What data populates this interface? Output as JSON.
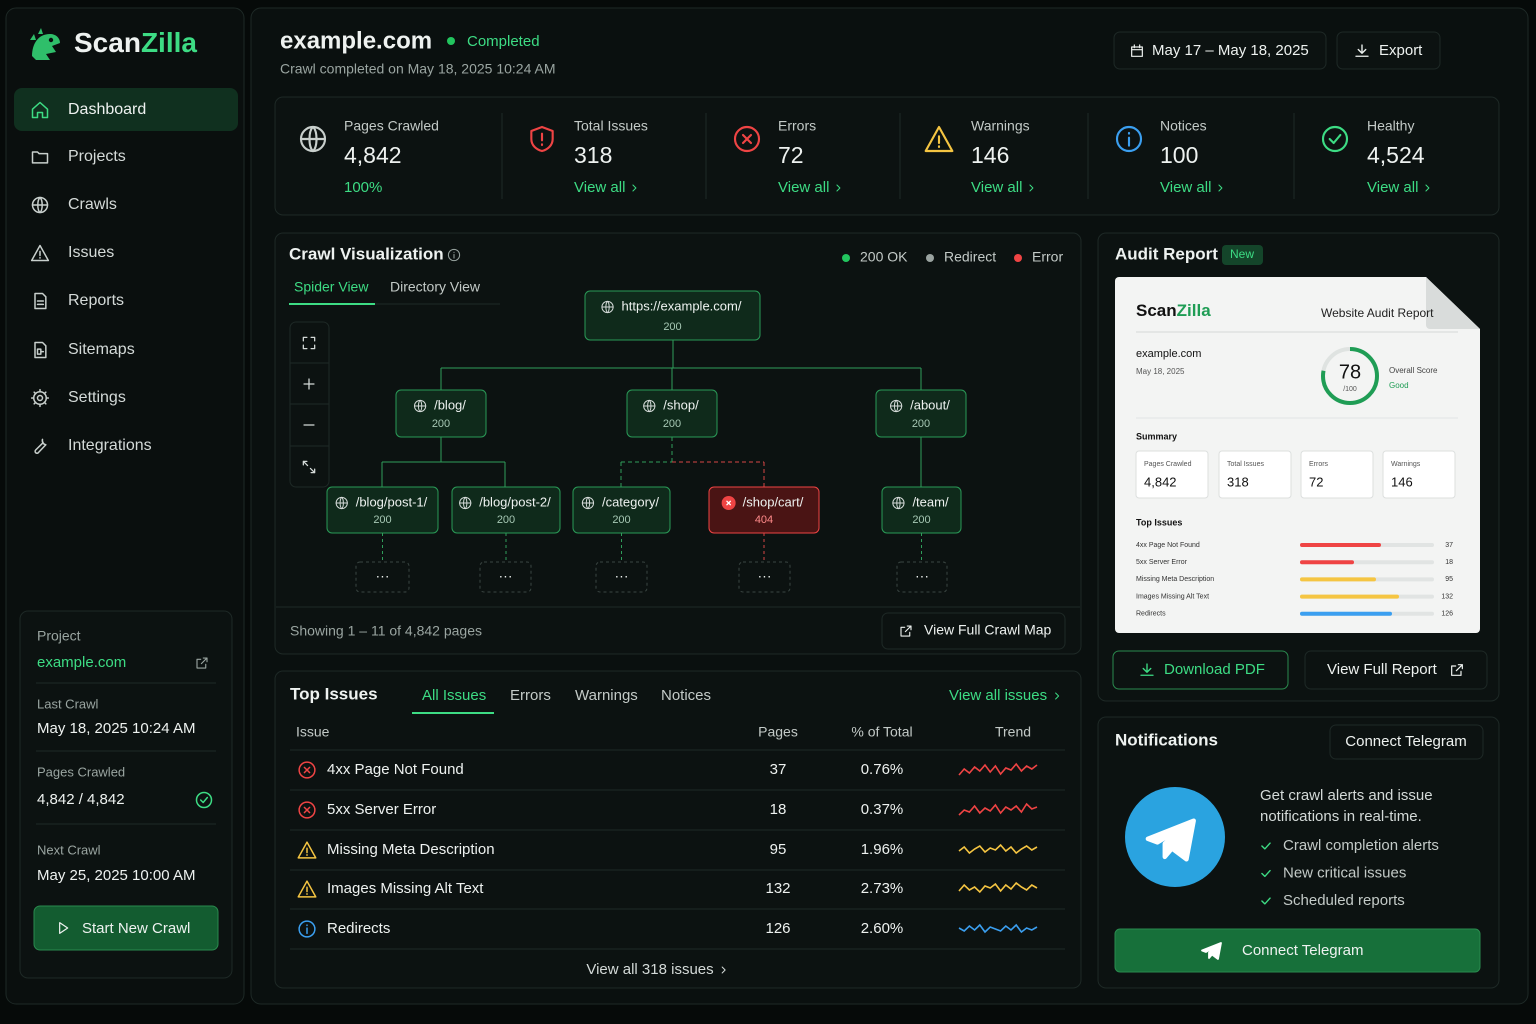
{
  "sidebar": {
    "brand": {
      "part1": "Scan",
      "part2": "Zilla"
    },
    "nav": [
      "Dashboard",
      "Projects",
      "Crawls",
      "Issues",
      "Reports",
      "Sitemaps",
      "Settings",
      "Integrations"
    ],
    "project": {
      "label": "Project",
      "name": "example.com",
      "last_crawl_label": "Last Crawl",
      "last_crawl": "May 18, 2025 10:24 AM",
      "pages_label": "Pages Crawled",
      "pages": "4,842 / 4,842",
      "next_crawl_label": "Next Crawl",
      "next_crawl": "May 25, 2025 10:00 AM",
      "button": "Start New Crawl"
    }
  },
  "header": {
    "site": "example.com",
    "status": "Completed",
    "subtitle": "Crawl completed on May 18, 2025 10:24 AM",
    "date_range": "May 17 – May 18, 2025",
    "export": "Export"
  },
  "stats": [
    {
      "label": "Pages Crawled",
      "value": "4,842",
      "link": "100%"
    },
    {
      "label": "Total Issues",
      "value": "318",
      "link": "View all"
    },
    {
      "label": "Errors",
      "value": "72",
      "link": "View all"
    },
    {
      "label": "Warnings",
      "value": "146",
      "link": "View all"
    },
    {
      "label": "Notices",
      "value": "100",
      "link": "View all"
    },
    {
      "label": "Healthy",
      "value": "4,524",
      "link": "View all"
    }
  ],
  "crawl": {
    "title": "Crawl Visualization",
    "legend": [
      "200 OK",
      "Redirect",
      "Error"
    ],
    "tabs": [
      "Spider View",
      "Directory View"
    ],
    "nodes": [
      {
        "label": "https://example.com/",
        "status": 200
      },
      {
        "label": "/blog/",
        "status": 200
      },
      {
        "label": "/shop/",
        "status": 200
      },
      {
        "label": "/about/",
        "status": 200
      },
      {
        "label": "/blog/post-1/",
        "status": 200
      },
      {
        "label": "/blog/post-2/",
        "status": 200
      },
      {
        "label": "/category/",
        "status": 200
      },
      {
        "label": "/shop/cart/",
        "status": 404
      },
      {
        "label": "/team/",
        "status": 200
      }
    ],
    "more": "···",
    "footer": "Showing 1 – 11 of 4,842 pages",
    "button": "View Full Crawl Map"
  },
  "issues": {
    "title": "Top Issues",
    "tabs": [
      "All Issues",
      "Errors",
      "Warnings",
      "Notices"
    ],
    "view_all": "View all issues",
    "columns": [
      "Issue",
      "Pages",
      "% of Total",
      "Trend"
    ],
    "rows": [
      {
        "issue": "4xx Page Not Found",
        "pages": 37,
        "percent": "0.76%",
        "severity": "error"
      },
      {
        "issue": "5xx Server Error",
        "pages": 18,
        "percent": "0.37%",
        "severity": "error"
      },
      {
        "issue": "Missing Meta Description",
        "pages": 95,
        "percent": "1.96%",
        "severity": "warning"
      },
      {
        "issue": "Images Missing Alt Text",
        "pages": 132,
        "percent": "2.73%",
        "severity": "warning"
      },
      {
        "issue": "Redirects",
        "pages": 126,
        "percent": "2.60%",
        "severity": "notice"
      }
    ],
    "footer": "View all 318 issues"
  },
  "audit": {
    "title": "Audit Report",
    "badge": "New",
    "doc": {
      "brand": {
        "part1": "Scan",
        "part2": "Zilla"
      },
      "title": "Website Audit Report",
      "site": "example.com",
      "date": "May 18, 2025",
      "score": 78,
      "score_max": {
        "value": 100,
        "label": "/100"
      },
      "score_label": "Overall Score",
      "score_grade": "Good",
      "summary_title": "Summary",
      "summary": [
        {
          "label": "Pages Crawled",
          "value": "4,842"
        },
        {
          "label": "Total Issues",
          "value": "318"
        },
        {
          "label": "Errors",
          "value": "72"
        },
        {
          "label": "Warnings",
          "value": "146"
        }
      ],
      "top_issues_title": "Top Issues",
      "top_issues": [
        {
          "label": "4xx Page Not Found",
          "value": 37,
          "severity": "error"
        },
        {
          "label": "5xx Server Error",
          "value": 18,
          "severity": "error"
        },
        {
          "label": "Missing Meta Description",
          "value": 95,
          "severity": "warning"
        },
        {
          "label": "Images Missing Alt Text",
          "value": 132,
          "severity": "warning"
        },
        {
          "label": "Redirects",
          "value": 126,
          "severity": "notice"
        }
      ]
    },
    "download": "Download PDF",
    "view": "View Full Report"
  },
  "notifications": {
    "title": "Notifications",
    "connect_top": "Connect Telegram",
    "text": "Get crawl alerts and issue notifications in real-time.",
    "features": [
      "Crawl completion alerts",
      "New critical issues",
      "Scheduled reports"
    ],
    "button": "Connect Telegram"
  }
}
